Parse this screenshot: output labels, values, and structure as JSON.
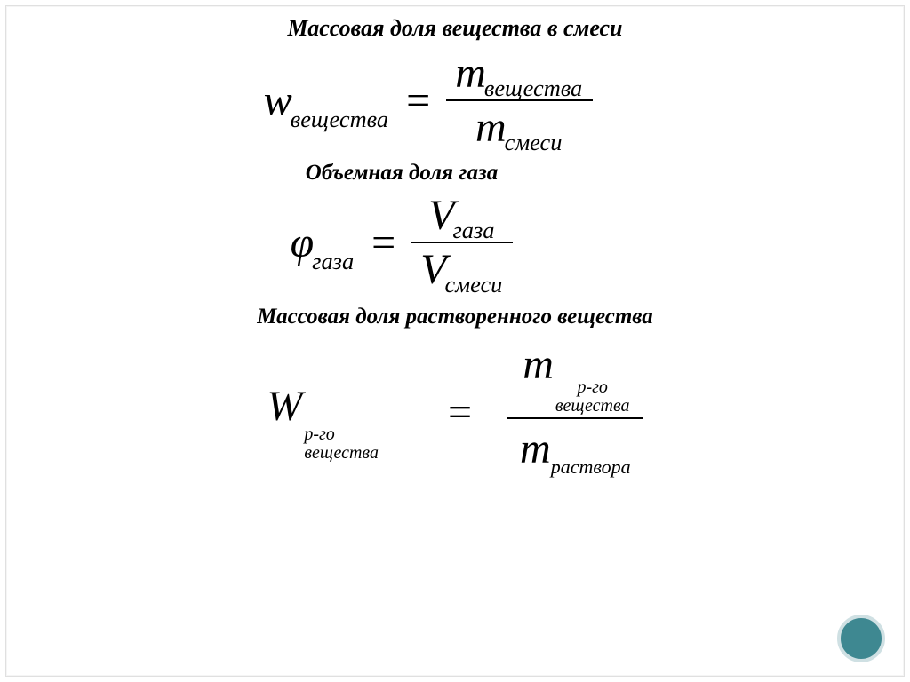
{
  "colors": {
    "background": "#ffffff",
    "text": "#000000",
    "circle_fill": "#3e8891",
    "circle_ring": "#cfe0e3",
    "frame_border": "#e0e0e0"
  },
  "block1": {
    "heading": "Массовая доля вещества в смеси",
    "lhs_var": "w",
    "lhs_sub": "вещества",
    "eq": "=",
    "num_var": "m",
    "num_sub": "вещества",
    "den_var": "m",
    "den_sub": "смеси"
  },
  "block2": {
    "heading": "Объемная доля газа",
    "lhs_var": "φ",
    "lhs_sub": "газа",
    "eq": "=",
    "num_var": "V",
    "num_sub": "газа",
    "den_var": "V",
    "den_sub": "смеси"
  },
  "block3": {
    "heading": "Массовая доля растворенного вещества",
    "lhs_var": "W",
    "lhs_sub_line1": "р-го",
    "lhs_sub_line2": "вещества",
    "eq": "=",
    "num_var": "m",
    "num_sub_line1": "р-го",
    "num_sub_line2": "вещества",
    "den_var": "m",
    "den_sub": "раствора"
  }
}
